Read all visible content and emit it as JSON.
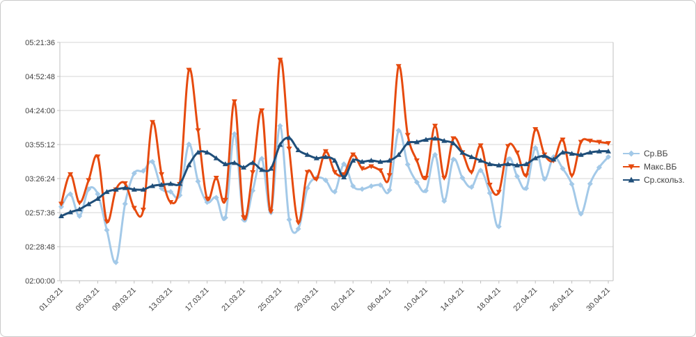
{
  "chart_data": {
    "type": "line",
    "title": "",
    "grid": true,
    "legend_position": "right",
    "x_label_interval": 4,
    "n_points": 61,
    "x_tick_labels": [
      "01.03.21",
      "05.03.21",
      "09.03.21",
      "13.03.21",
      "17.03.21",
      "21.03.21",
      "25.03.21",
      "29.03.21",
      "02.04.21",
      "06.04.21",
      "10.04.21",
      "14.04.21",
      "18.04.21",
      "22.04.21",
      "26.04.21",
      "30.04.21"
    ],
    "y_tick_labels": [
      "02:00:00",
      "02:28:48",
      "02:57:36",
      "03:26:24",
      "03:55:12",
      "04:24:00",
      "04:52:48",
      "05:21:36"
    ],
    "y_tick_seconds": [
      7200,
      8928,
      10656,
      12384,
      14112,
      15840,
      17568,
      19296
    ],
    "y_range": [
      7200,
      19296
    ],
    "colors": {
      "grid": "#d6d6d6",
      "axis": "#bfbfbf",
      "tick_text": "#404040"
    },
    "series": [
      {
        "name": "Ср.ВБ",
        "color": "#A3C9E8",
        "marker": "diamond",
        "values": [
          10950,
          11600,
          10480,
          11850,
          11600,
          9770,
          8130,
          11100,
          12650,
          12770,
          13240,
          11890,
          11712,
          11537,
          14124,
          12242,
          11184,
          11418,
          10400,
          14650,
          10300,
          11770,
          13400,
          10660,
          15060,
          10300,
          9830,
          11900,
          12420,
          12300,
          11712,
          13120,
          12000,
          11850,
          12000,
          12060,
          11800,
          14820,
          13100,
          12200,
          11770,
          13594,
          11243,
          13360,
          12420,
          11950,
          12800,
          11650,
          9950,
          13350,
          12500,
          11890,
          13945,
          12360,
          13480,
          12890,
          12100,
          10595,
          12120,
          12950,
          13480
        ]
      },
      {
        "name": "Макс.ВБ",
        "color": "#E64A0E",
        "marker": "triangle-down",
        "values": [
          11100,
          12600,
          11160,
          12300,
          13500,
          10200,
          11830,
          12140,
          10890,
          10800,
          15250,
          12600,
          11184,
          12100,
          17900,
          14830,
          11360,
          12420,
          11300,
          16300,
          10420,
          12700,
          15840,
          10714,
          18410,
          13900,
          10150,
          12712,
          12358,
          13770,
          12712,
          12600,
          13600,
          12900,
          13000,
          12800,
          12550,
          18090,
          14594,
          13300,
          12420,
          15060,
          12420,
          14420,
          13710,
          12712,
          14065,
          12065,
          11700,
          14030,
          13700,
          12540,
          14890,
          13600,
          13300,
          14360,
          12540,
          14240,
          14300,
          14240,
          14180
        ]
      },
      {
        "name": "Ср.скольз.",
        "color": "#1F4E79",
        "marker": "triangle-up",
        "values": [
          10480,
          10680,
          10830,
          11090,
          11360,
          11710,
          11830,
          11910,
          11830,
          11830,
          12010,
          12070,
          12120,
          12120,
          13070,
          13710,
          13710,
          13420,
          13120,
          13180,
          12950,
          13180,
          12830,
          12890,
          14100,
          14450,
          13830,
          13590,
          13420,
          13480,
          13300,
          12450,
          13300,
          13240,
          13300,
          13240,
          13300,
          13590,
          14180,
          14240,
          14360,
          14420,
          14300,
          14180,
          13700,
          13480,
          13300,
          13120,
          13060,
          13120,
          13060,
          13120,
          13420,
          13540,
          13360,
          13710,
          13650,
          13590,
          13710,
          13770,
          13770
        ]
      }
    ]
  }
}
